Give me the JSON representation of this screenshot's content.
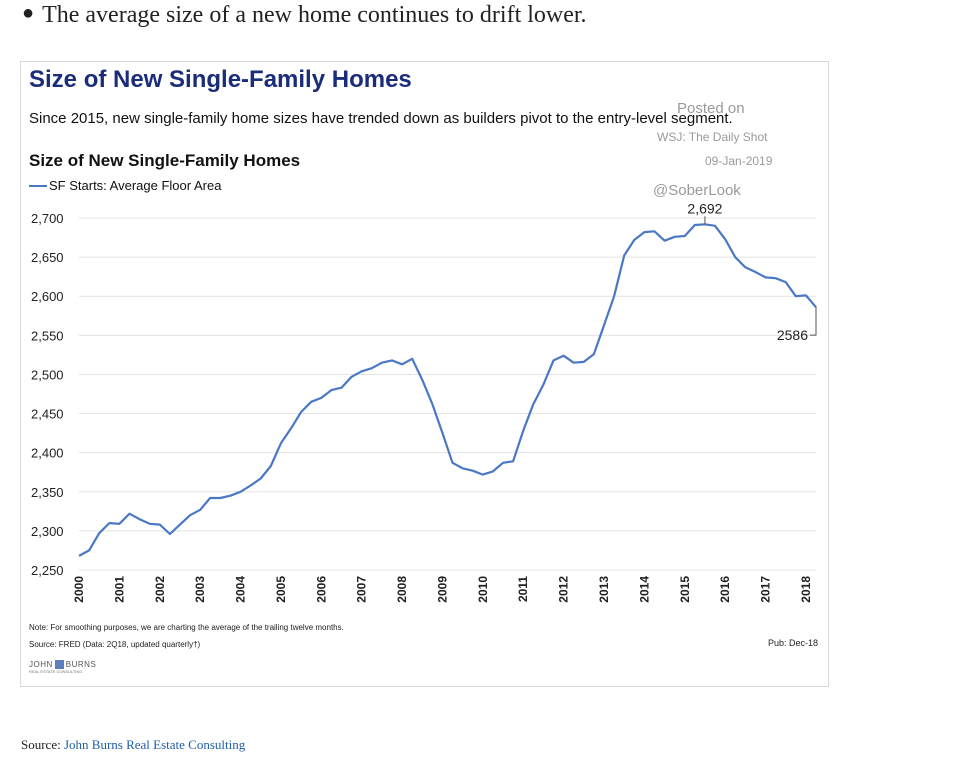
{
  "intro_text": "The average size of a new home continues to drift lower.",
  "card": {
    "big_title": "Size of New Single-Family Homes",
    "subtitle": "Since 2015, new single-family home sizes have trended down as builders pivot to the entry-level segment.",
    "note": "Note: For smoothing purposes, we are charting the average of the trailing twelve months.",
    "source": "Source: FRED (Data: 2Q18, updated quarterly†)",
    "pub": "Pub: Dec-18",
    "logo_main_left": "JOHN",
    "logo_main_right": "BURNS",
    "logo_sub": "REAL ESTATE CONSULTING"
  },
  "watermark": {
    "posted_on": "Posted on",
    "outlet": "WSJ: The Daily Shot",
    "date": "09-Jan-2019",
    "handle": "@SoberLook"
  },
  "footer": {
    "source_label": "Source: ",
    "source_link": "John Burns Real Estate Consulting"
  },
  "chart_data": {
    "type": "line",
    "title": "Size of New Single-Family Homes",
    "xlabel": "",
    "ylabel": "",
    "ylim": [
      2250,
      2700
    ],
    "yticks": [
      2250,
      2300,
      2350,
      2400,
      2450,
      2500,
      2550,
      2600,
      2650,
      2700
    ],
    "ytick_labels": [
      "2,250",
      "2,300",
      "2,350",
      "2,400",
      "2,450",
      "2,500",
      "2,550",
      "2,600",
      "2,650",
      "2,700"
    ],
    "xlim": [
      2000,
      2018.25
    ],
    "xticks": [
      2000,
      2001,
      2002,
      2003,
      2004,
      2005,
      2006,
      2007,
      2008,
      2009,
      2010,
      2011,
      2012,
      2013,
      2014,
      2015,
      2016,
      2017,
      2018
    ],
    "xtick_labels": [
      "2000",
      "2001",
      "2002",
      "2003",
      "2004",
      "2005",
      "2006",
      "2007",
      "2008",
      "2009",
      "2010",
      "2011",
      "2012",
      "2013",
      "2014",
      "2015",
      "2016",
      "2017",
      "2018"
    ],
    "grid": true,
    "legend_position": "top-left",
    "color": "#4a78c4",
    "series": [
      {
        "name": "SF Starts: Average Floor Area",
        "x": [
          2000.0,
          2000.25,
          2000.5,
          2000.75,
          2001.0,
          2001.25,
          2001.5,
          2001.75,
          2002.0,
          2002.25,
          2002.5,
          2002.75,
          2003.0,
          2003.25,
          2003.5,
          2003.75,
          2004.0,
          2004.25,
          2004.5,
          2004.75,
          2005.0,
          2005.25,
          2005.5,
          2005.75,
          2006.0,
          2006.25,
          2006.5,
          2006.75,
          2007.0,
          2007.25,
          2007.5,
          2007.75,
          2008.0,
          2008.25,
          2008.5,
          2008.75,
          2009.0,
          2009.25,
          2009.5,
          2009.75,
          2010.0,
          2010.25,
          2010.5,
          2010.75,
          2011.0,
          2011.25,
          2011.5,
          2011.75,
          2012.0,
          2012.25,
          2012.5,
          2012.75,
          2013.0,
          2013.25,
          2013.5,
          2013.75,
          2014.0,
          2014.25,
          2014.5,
          2014.75,
          2015.0,
          2015.25,
          2015.5,
          2015.75,
          2016.0,
          2016.25,
          2016.5,
          2016.75,
          2017.0,
          2017.25,
          2017.5,
          2017.75,
          2018.0,
          2018.25
        ],
        "y": [
          2268,
          2275,
          2297,
          2310,
          2309,
          2322,
          2315,
          2309,
          2308,
          2296,
          2308,
          2320,
          2327,
          2342,
          2342,
          2345,
          2350,
          2358,
          2367,
          2383,
          2412,
          2431,
          2452,
          2465,
          2470,
          2480,
          2483,
          2497,
          2504,
          2508,
          2515,
          2518,
          2513,
          2520,
          2493,
          2462,
          2425,
          2387,
          2380,
          2377,
          2372,
          2376,
          2387,
          2389,
          2428,
          2462,
          2487,
          2518,
          2524,
          2515,
          2516,
          2526,
          2563,
          2600,
          2652,
          2672,
          2682,
          2683,
          2671,
          2676,
          2677,
          2691,
          2692,
          2690,
          2673,
          2650,
          2637,
          2631,
          2624,
          2623,
          2618,
          2600,
          2601,
          2586
        ]
      }
    ],
    "annotations": [
      {
        "text": "2,692",
        "x": 2015.5,
        "y": 2692
      },
      {
        "text": "2586",
        "x": 2018.25,
        "y": 2586
      }
    ]
  }
}
